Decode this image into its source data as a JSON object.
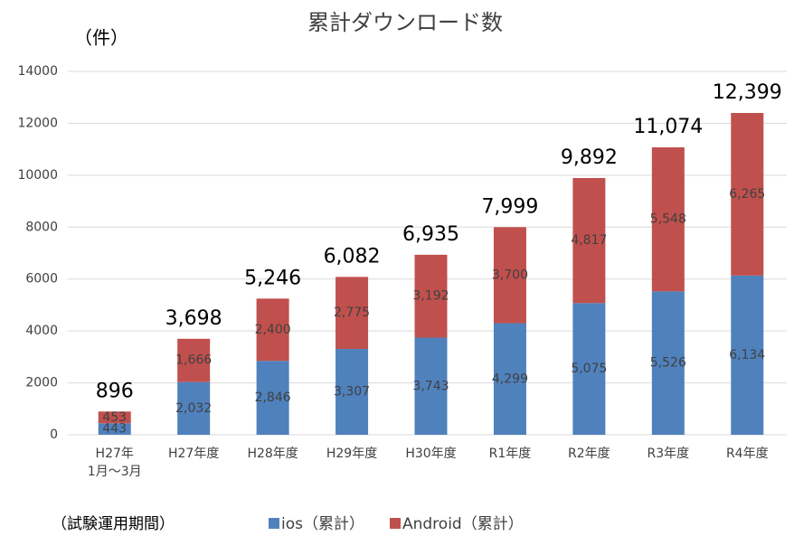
{
  "chart_data": {
    "type": "stacked_bar",
    "title": "累計ダウンロード数",
    "y_unit_label": "（件）",
    "note": "（試験運用期間）",
    "categories": [
      "H27年\n1月～3月",
      "H27年度",
      "H28年度",
      "H29年度",
      "H30年度",
      "R1年度",
      "R2年度",
      "R3年度",
      "R4年度"
    ],
    "series": [
      {
        "name": "ios（累計）",
        "color": "#4f81bd",
        "values": [
          443,
          2032,
          2846,
          3307,
          3743,
          4299,
          5075,
          5526,
          6134
        ],
        "value_labels": [
          "443",
          "2,032",
          "2,846",
          "3,307",
          "3,743",
          "4,299",
          "5,075",
          "5,526",
          "6,134"
        ]
      },
      {
        "name": "Android（累計）",
        "color": "#c0504d",
        "values": [
          453,
          1666,
          2400,
          2775,
          3192,
          3700,
          4817,
          5548,
          6265
        ],
        "value_labels": [
          "453",
          "1,666",
          "2,400",
          "2,775",
          "3,192",
          "3,700",
          "4,817",
          "5,548",
          "6,265"
        ]
      }
    ],
    "total_labels": [
      "896",
      "3,698",
      "5,246",
      "6,082",
      "6,935",
      "7,999",
      "9,892",
      "11,074",
      "12,399"
    ],
    "ylim": [
      0,
      14000
    ],
    "yticks": [
      0,
      2000,
      4000,
      6000,
      8000,
      10000,
      12000,
      14000
    ],
    "grid": true,
    "legend": "bottom"
  }
}
